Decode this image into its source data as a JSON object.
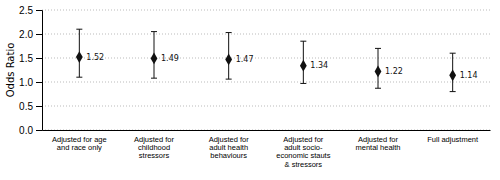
{
  "chart_data": {
    "type": "errorbar",
    "categories": [
      "Adjusted for age\nand race only",
      "Adjusted for\nchildhood\nstressors",
      "Adjusted for\nadult health\nbehaviours",
      "Adjusted for\nadult socio-\neconomic stauts\n& stressors",
      "Adjusted for\nmental health",
      "Full adjustment"
    ],
    "values": [
      1.52,
      1.49,
      1.47,
      1.34,
      1.22,
      1.14
    ],
    "ci_lower": [
      1.1,
      1.08,
      1.06,
      0.97,
      0.87,
      0.8
    ],
    "ci_upper": [
      2.1,
      2.05,
      2.03,
      1.85,
      1.7,
      1.6
    ],
    "ylabel": "Odds Ratio",
    "ylim": [
      0,
      2.5
    ],
    "yticks": [
      {
        "value": 0,
        "label": "0.0"
      },
      0.5,
      {
        "value": 1,
        "label": "1.0"
      },
      1.5,
      {
        "value": 2,
        "label": "2.0"
      },
      2.5
    ],
    "grid": true,
    "data_labels": true,
    "marker": "diamond",
    "color": "#111111"
  }
}
